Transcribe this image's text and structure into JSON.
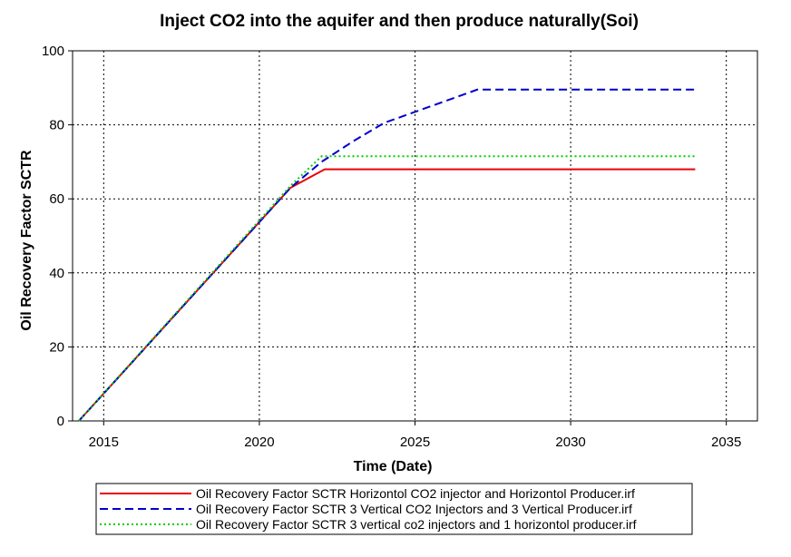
{
  "chart_data": {
    "type": "line",
    "title": "Inject CO2 into the aquifer and then produce naturally(Soi)",
    "xlabel": "Time (Date)",
    "ylabel": "Oil Recovery Factor SCTR",
    "xlim": [
      2014,
      2036
    ],
    "ylim": [
      0,
      100
    ],
    "xticks": [
      "2015",
      "2020",
      "2025",
      "2030",
      "2035"
    ],
    "yticks": [
      "0",
      "20",
      "40",
      "60",
      "80",
      "100"
    ],
    "grid": true,
    "legend_position": "bottom",
    "series": [
      {
        "name": "Oil Recovery Factor SCTR Horizontol CO2 injector and Horizontol Producer.irf",
        "color": "#e8000b",
        "dash": "solid",
        "x": [
          2014.2,
          2021,
          2022.1,
          2034
        ],
        "y": [
          0,
          63,
          68,
          68
        ]
      },
      {
        "name": "Oil Recovery Factor SCTR 3 Vertical CO2 Injectors and 3 Vertical Producer.irf",
        "color": "#0000cc",
        "dash": "dashed",
        "x": [
          2014.2,
          2021,
          2022,
          2023,
          2024,
          2025,
          2026,
          2027,
          2034
        ],
        "y": [
          0,
          63,
          70,
          75.5,
          80.5,
          83.5,
          86.5,
          89.5,
          89.5
        ]
      },
      {
        "name": "Oil Recovery Factor SCTR 3 vertical co2 injectors and 1 horizontol producer.irf",
        "color": "#00cc00",
        "dash": "dotted",
        "x": [
          2014.2,
          2021,
          2022,
          2034
        ],
        "y": [
          0,
          63.5,
          71.5,
          71.5
        ]
      }
    ]
  }
}
